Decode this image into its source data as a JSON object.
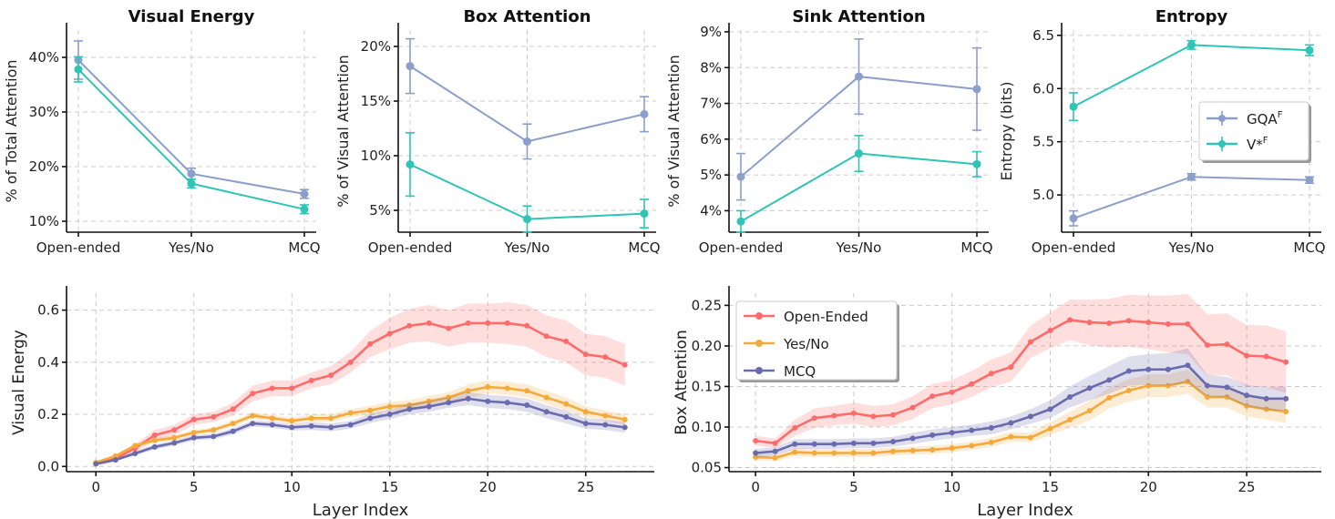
{
  "chart_data": [
    {
      "type": "line",
      "title": "Visual Energy",
      "ylabel": "% of Total Attention",
      "categories": [
        "Open-ended",
        "Yes/No",
        "MCQ"
      ],
      "ylim": [
        8,
        45
      ],
      "yticks": [
        10,
        20,
        30,
        40
      ],
      "ytick_format": "percent",
      "series": [
        {
          "name": "GQA",
          "sup": "F",
          "color": "#8C9FCA",
          "values": [
            39.5,
            18.7,
            15.0
          ],
          "errors": [
            3.5,
            1.0,
            0.8
          ]
        },
        {
          "name": "V*",
          "sup": "F",
          "color": "#2EC4B6",
          "values": [
            37.8,
            16.9,
            12.2
          ],
          "errors": [
            2.3,
            0.8,
            0.8
          ]
        }
      ]
    },
    {
      "type": "line",
      "title": "Box Attention",
      "ylabel": "% of Visual Attention",
      "categories": [
        "Open-ended",
        "Yes/No",
        "MCQ"
      ],
      "ylim": [
        3,
        21.5
      ],
      "yticks": [
        5,
        10,
        15,
        20
      ],
      "ytick_format": "percent",
      "series": [
        {
          "name": "GQA",
          "sup": "F",
          "color": "#8C9FCA",
          "values": [
            18.2,
            11.3,
            13.8
          ],
          "errors": [
            2.5,
            1.6,
            1.6
          ]
        },
        {
          "name": "V*",
          "sup": "F",
          "color": "#2EC4B6",
          "values": [
            9.2,
            4.2,
            4.7
          ],
          "errors": [
            2.9,
            1.2,
            1.3
          ]
        }
      ]
    },
    {
      "type": "line",
      "title": "Sink Attention",
      "ylabel": "% of Visual Attention",
      "categories": [
        "Open-ended",
        "Yes/No",
        "MCQ"
      ],
      "ylim": [
        3.4,
        9.05
      ],
      "yticks": [
        4,
        5,
        6,
        7,
        8,
        9
      ],
      "ytick_format": "percent",
      "series": [
        {
          "name": "GQA",
          "sup": "F",
          "color": "#8C9FCA",
          "values": [
            4.95,
            7.75,
            7.4
          ],
          "errors": [
            0.65,
            1.05,
            1.15
          ]
        },
        {
          "name": "V*",
          "sup": "F",
          "color": "#2EC4B6",
          "values": [
            3.7,
            5.6,
            5.3
          ],
          "errors": [
            0.3,
            0.5,
            0.35
          ]
        }
      ]
    },
    {
      "type": "line",
      "title": "Entropy",
      "ylabel": "Entropy (bits)",
      "categories": [
        "Open-ended",
        "Yes/No",
        "MCQ"
      ],
      "ylim": [
        4.65,
        6.55
      ],
      "yticks": [
        5.0,
        5.5,
        6.0,
        6.5
      ],
      "ytick_format": "fixed1",
      "legend": "center-right",
      "series": [
        {
          "name": "GQA",
          "sup": "F",
          "color": "#8C9FCA",
          "values": [
            4.78,
            5.17,
            5.14
          ],
          "errors": [
            0.07,
            0.03,
            0.03
          ]
        },
        {
          "name": "V*",
          "sup": "F",
          "color": "#2EC4B6",
          "values": [
            5.83,
            6.41,
            6.36
          ],
          "errors": [
            0.13,
            0.04,
            0.05
          ]
        }
      ]
    },
    {
      "type": "line",
      "title": "",
      "xlabel": "Layer Index",
      "ylabel": "Visual Energy",
      "xlim": [
        -1.5,
        28.5
      ],
      "xticks": [
        0,
        5,
        10,
        15,
        20,
        25
      ],
      "ylim": [
        -0.02,
        0.665
      ],
      "yticks": [
        0.0,
        0.2,
        0.4,
        0.6
      ],
      "ytick_format": "fixed1",
      "series": [
        {
          "name": "Open-Ended",
          "color": "#FF6B6B",
          "band": [
            0.01,
            0.01,
            0.015,
            0.02,
            0.02,
            0.02,
            0.02,
            0.025,
            0.03,
            0.03,
            0.03,
            0.03,
            0.035,
            0.04,
            0.05,
            0.06,
            0.065,
            0.07,
            0.07,
            0.075,
            0.075,
            0.08,
            0.08,
            0.08,
            0.08,
            0.08,
            0.08,
            0.08
          ],
          "values": [
            0.01,
            0.03,
            0.07,
            0.12,
            0.14,
            0.18,
            0.19,
            0.22,
            0.28,
            0.3,
            0.3,
            0.33,
            0.35,
            0.4,
            0.47,
            0.51,
            0.54,
            0.55,
            0.53,
            0.55,
            0.55,
            0.55,
            0.54,
            0.5,
            0.48,
            0.43,
            0.42,
            0.39
          ]
        },
        {
          "name": "Yes/No",
          "color": "#F5A93A",
          "band": [
            0.005,
            0.005,
            0.008,
            0.01,
            0.01,
            0.01,
            0.01,
            0.012,
            0.012,
            0.012,
            0.012,
            0.015,
            0.015,
            0.015,
            0.018,
            0.018,
            0.02,
            0.02,
            0.02,
            0.025,
            0.025,
            0.025,
            0.025,
            0.025,
            0.025,
            0.02,
            0.02,
            0.02
          ],
          "values": [
            0.015,
            0.04,
            0.08,
            0.1,
            0.11,
            0.13,
            0.14,
            0.165,
            0.195,
            0.185,
            0.175,
            0.185,
            0.185,
            0.205,
            0.215,
            0.23,
            0.235,
            0.25,
            0.265,
            0.29,
            0.305,
            0.3,
            0.29,
            0.265,
            0.24,
            0.21,
            0.195,
            0.18
          ]
        },
        {
          "name": "MCQ",
          "color": "#6A6AAE",
          "band": [
            0.005,
            0.005,
            0.008,
            0.01,
            0.01,
            0.01,
            0.01,
            0.012,
            0.012,
            0.012,
            0.012,
            0.015,
            0.015,
            0.015,
            0.018,
            0.018,
            0.02,
            0.02,
            0.02,
            0.025,
            0.025,
            0.025,
            0.025,
            0.025,
            0.025,
            0.02,
            0.02,
            0.02
          ],
          "values": [
            0.01,
            0.025,
            0.05,
            0.075,
            0.09,
            0.11,
            0.115,
            0.135,
            0.165,
            0.16,
            0.15,
            0.155,
            0.15,
            0.16,
            0.185,
            0.2,
            0.22,
            0.23,
            0.245,
            0.26,
            0.25,
            0.245,
            0.235,
            0.21,
            0.19,
            0.165,
            0.16,
            0.15
          ]
        }
      ]
    },
    {
      "type": "line",
      "title": "",
      "xlabel": "Layer Index",
      "ylabel": "Box Attention",
      "xlim": [
        -1.35,
        28.8
      ],
      "xticks": [
        0,
        5,
        10,
        15,
        20,
        25
      ],
      "ylim": [
        0.045,
        0.265
      ],
      "yticks": [
        0.05,
        0.1,
        0.15,
        0.2,
        0.25
      ],
      "ytick_format": "fixed2",
      "legend": "upper-left",
      "series": [
        {
          "name": "Open-Ended",
          "color": "#FF6B6B",
          "band": [
            0.006,
            0.006,
            0.01,
            0.012,
            0.012,
            0.013,
            0.013,
            0.013,
            0.014,
            0.015,
            0.015,
            0.016,
            0.017,
            0.018,
            0.02,
            0.022,
            0.025,
            0.028,
            0.03,
            0.032,
            0.033,
            0.035,
            0.037,
            0.038,
            0.038,
            0.038,
            0.038,
            0.038
          ],
          "values": [
            0.083,
            0.08,
            0.099,
            0.111,
            0.114,
            0.117,
            0.113,
            0.115,
            0.124,
            0.138,
            0.143,
            0.153,
            0.166,
            0.174,
            0.205,
            0.219,
            0.232,
            0.229,
            0.228,
            0.231,
            0.229,
            0.227,
            0.227,
            0.201,
            0.202,
            0.188,
            0.187,
            0.18
          ]
        },
        {
          "name": "Yes/No",
          "color": "#F5A93A",
          "band": [
            0.004,
            0.004,
            0.005,
            0.005,
            0.005,
            0.005,
            0.005,
            0.005,
            0.005,
            0.005,
            0.005,
            0.005,
            0.006,
            0.006,
            0.006,
            0.008,
            0.01,
            0.012,
            0.013,
            0.014,
            0.014,
            0.014,
            0.015,
            0.013,
            0.013,
            0.013,
            0.013,
            0.014
          ],
          "values": [
            0.063,
            0.062,
            0.069,
            0.068,
            0.068,
            0.068,
            0.068,
            0.07,
            0.071,
            0.072,
            0.074,
            0.077,
            0.081,
            0.088,
            0.087,
            0.098,
            0.109,
            0.12,
            0.136,
            0.145,
            0.151,
            0.151,
            0.156,
            0.137,
            0.137,
            0.126,
            0.122,
            0.119
          ]
        },
        {
          "name": "MCQ",
          "color": "#6A6AAE",
          "band": [
            0.005,
            0.005,
            0.006,
            0.006,
            0.006,
            0.006,
            0.006,
            0.006,
            0.007,
            0.007,
            0.007,
            0.007,
            0.008,
            0.008,
            0.009,
            0.011,
            0.013,
            0.015,
            0.017,
            0.018,
            0.019,
            0.02,
            0.021,
            0.013,
            0.013,
            0.013,
            0.014,
            0.015
          ],
          "values": [
            0.068,
            0.07,
            0.079,
            0.079,
            0.079,
            0.08,
            0.08,
            0.082,
            0.086,
            0.09,
            0.093,
            0.096,
            0.099,
            0.105,
            0.113,
            0.122,
            0.137,
            0.148,
            0.158,
            0.169,
            0.171,
            0.171,
            0.176,
            0.151,
            0.149,
            0.139,
            0.135,
            0.135
          ]
        }
      ]
    }
  ]
}
